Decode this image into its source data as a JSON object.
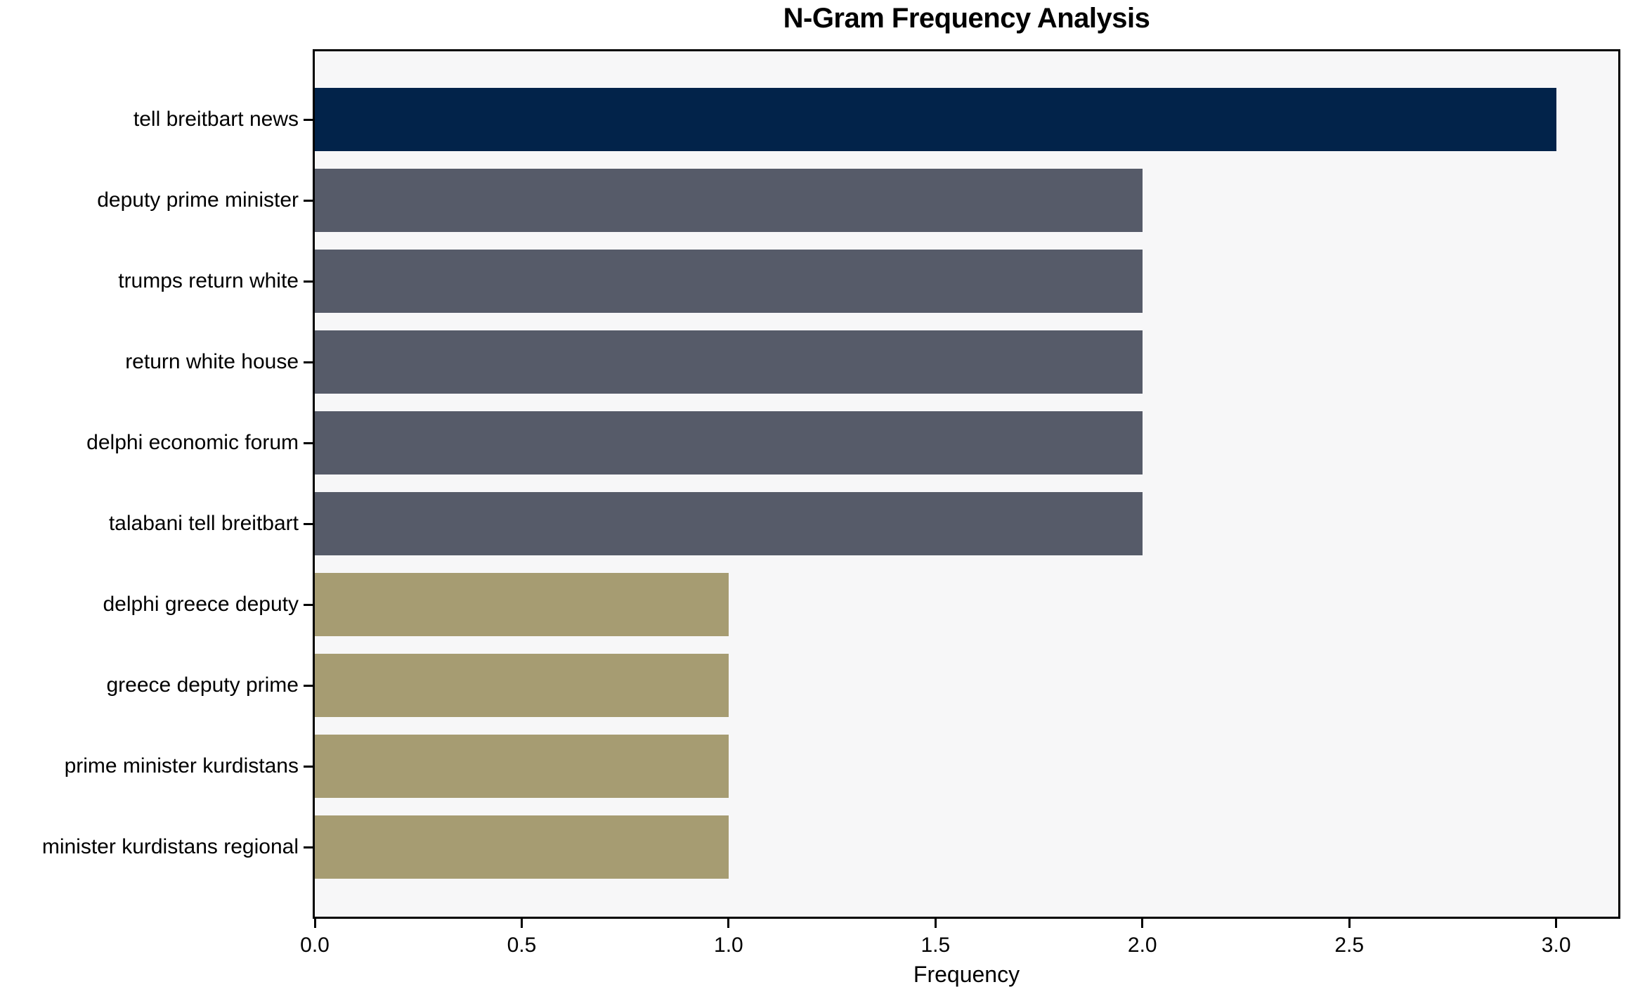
{
  "title": "N-Gram Frequency Analysis",
  "xlabel": "Frequency",
  "chart_data": {
    "type": "bar",
    "orientation": "horizontal",
    "title": "N-Gram Frequency Analysis",
    "xlabel": "Frequency",
    "ylabel": "",
    "categories": [
      "tell breitbart news",
      "deputy prime minister",
      "trumps return white",
      "return white house",
      "delphi economic forum",
      "talabani tell breitbart",
      "delphi greece deputy",
      "greece deputy prime",
      "prime minister kurdistans",
      "minister kurdistans regional"
    ],
    "values": [
      3,
      2,
      2,
      2,
      2,
      2,
      1,
      1,
      1,
      1
    ],
    "bar_colors": [
      "#02234a",
      "#565b69",
      "#565b69",
      "#565b69",
      "#565b69",
      "#565b69",
      "#a69c72",
      "#a69c72",
      "#a69c72",
      "#a69c72"
    ],
    "xlim": [
      0,
      3.15
    ],
    "xticks": [
      0.0,
      0.5,
      1.0,
      1.5,
      2.0,
      2.5,
      3.0
    ],
    "xtick_labels": [
      "0.0",
      "0.5",
      "1.0",
      "1.5",
      "2.0",
      "2.5",
      "3.0"
    ],
    "grid": false,
    "legend": null,
    "plot_background": "#f7f7f8",
    "figure_background": "#ffffff",
    "palette": {
      "navy": "#02234a",
      "slate": "#565b69",
      "khaki": "#a69c72"
    }
  }
}
